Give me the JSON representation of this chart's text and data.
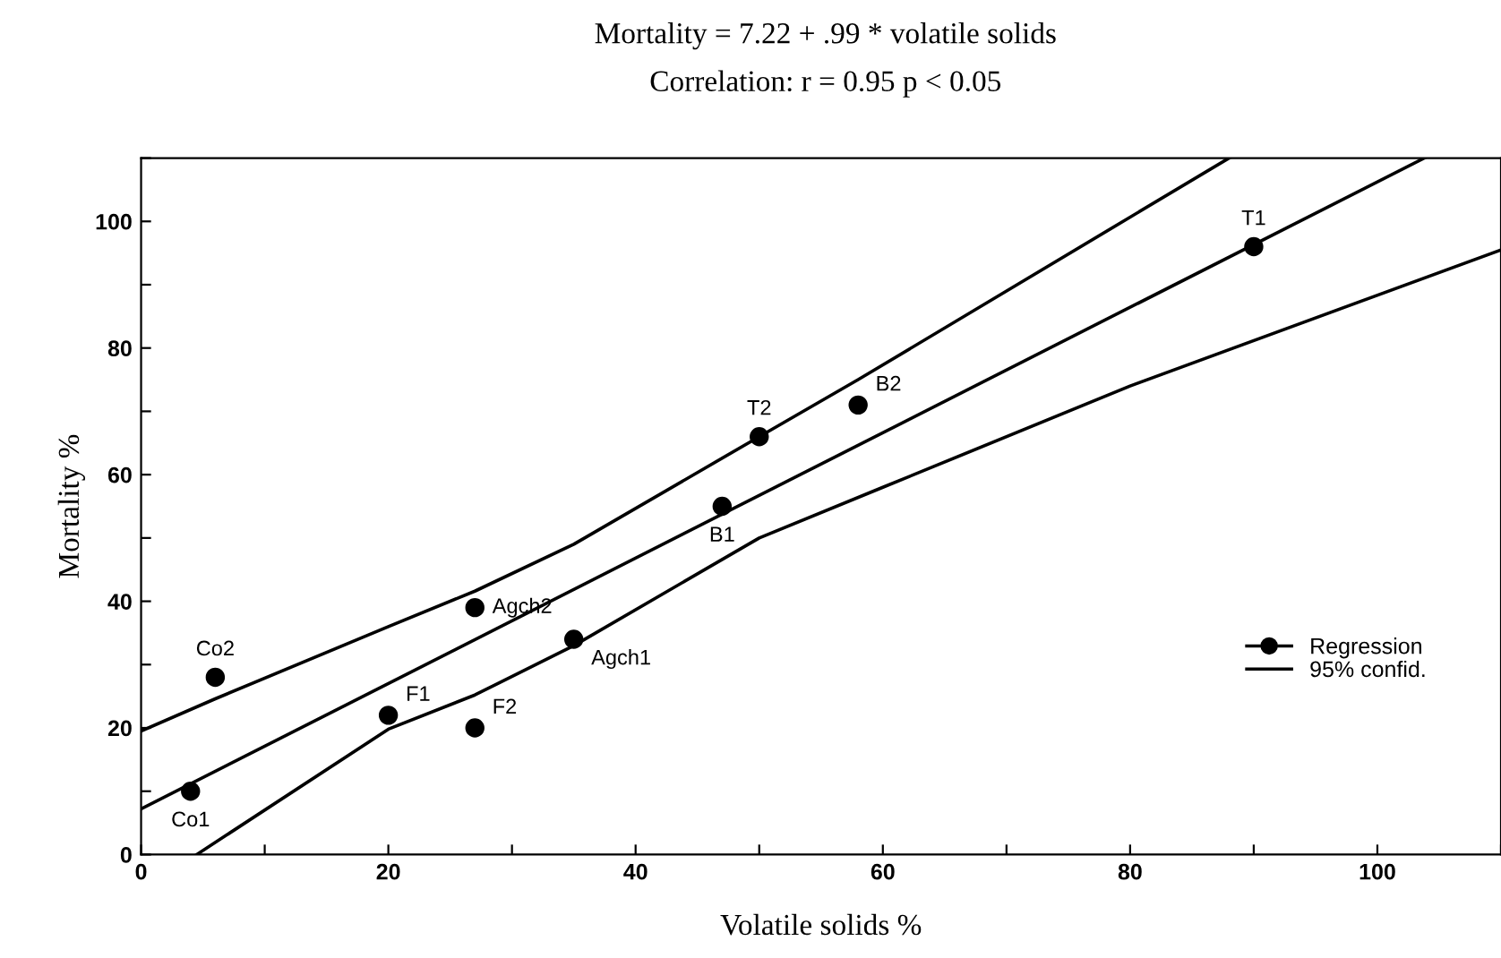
{
  "chart_data": {
    "type": "scatter",
    "title": "Mortality = 7.22 + .99 * volatile solids",
    "subtitle": "Correlation: r = 0.95 p < 0.05",
    "xlabel": "Volatile solids %",
    "ylabel": "Mortality %",
    "x": [
      4,
      6,
      20,
      27,
      27,
      35,
      47,
      50,
      58,
      90
    ],
    "series": [
      {
        "color": "#000000",
        "values": [
          10,
          28,
          22,
          20,
          39,
          34,
          55,
          66,
          71,
          96
        ]
      },
      {
        "type": "line",
        "marker": "none",
        "name": "Regression",
        "color": "#000000",
        "x": [
          0,
          103.8
        ],
        "values": [
          7.2,
          110
        ]
      },
      {
        "type": "line",
        "marker": "none",
        "name": "95% confid.",
        "color": "#000000",
        "x": [
          0,
          6,
          20,
          27,
          35,
          50,
          58,
          88
        ],
        "values": [
          19.5,
          24.6,
          36,
          41.6,
          49,
          66,
          75,
          110
        ]
      },
      {
        "type": "line",
        "marker": "none",
        "color": "#000000",
        "x": [
          4.5,
          20,
          27,
          35,
          50,
          60,
          80,
          110
        ],
        "values": [
          0,
          19.8,
          25.2,
          33,
          50,
          58,
          74,
          95.5
        ]
      }
    ],
    "annotations": [
      {
        "text": "Co1",
        "x": 4,
        "y": 10
      },
      {
        "text": "Co2",
        "x": 6,
        "y": 28
      },
      {
        "text": "F1",
        "x": 20,
        "y": 22
      },
      {
        "text": "F2",
        "x": 27,
        "y": 20
      },
      {
        "text": "Agch2",
        "x": 27,
        "y": 39
      },
      {
        "text": "Agch1",
        "x": 35,
        "y": 34
      },
      {
        "text": "B1",
        "x": 47,
        "y": 55
      },
      {
        "text": "T2",
        "x": 50,
        "y": 66
      },
      {
        "text": "B2",
        "x": 58,
        "y": 71
      },
      {
        "text": "T1",
        "x": 90,
        "y": 96
      }
    ],
    "xlim": [
      0,
      110
    ],
    "ylim": [
      0,
      110
    ],
    "xticks": [
      0,
      {
        "value": 10,
        "label": null
      },
      20,
      {
        "value": 30,
        "label": null
      },
      40,
      {
        "value": 50,
        "label": null
      },
      60,
      {
        "value": 70,
        "label": null
      },
      80,
      {
        "value": 90,
        "label": null
      },
      100,
      {
        "value": 110,
        "label": null
      }
    ],
    "yticks": [
      0,
      {
        "value": 10,
        "label": null
      },
      20,
      {
        "value": 30,
        "label": null
      },
      40,
      {
        "value": 50,
        "label": null
      },
      60,
      {
        "value": 70,
        "label": null
      },
      80,
      {
        "value": 90,
        "label": null
      },
      100,
      {
        "value": 110,
        "label": null
      }
    ],
    "marker": "circle",
    "grid": false,
    "legend": "right"
  }
}
